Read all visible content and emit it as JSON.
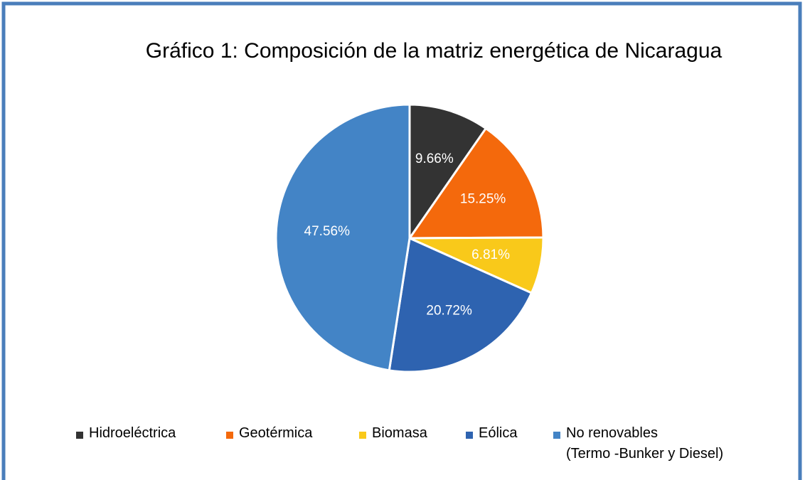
{
  "chart_data": {
    "type": "pie",
    "title": "Gráfico 1: Composición de la matriz energética de Nicaragua",
    "categories": [
      "Hidroeléctrica",
      "Geotérmica",
      "Biomasa",
      "Eólica",
      "No renovables\n(Termo -Bunker y Diesel)"
    ],
    "values": [
      9.66,
      15.25,
      6.81,
      20.72,
      47.56
    ],
    "value_labels": [
      "9.66%",
      "15.25%",
      "6.81%",
      "20.72%",
      "47.56%"
    ],
    "colors": [
      "#333333",
      "#f4690c",
      "#f9c91a",
      "#2e63b0",
      "#4384c6"
    ],
    "legend": "bottom"
  }
}
